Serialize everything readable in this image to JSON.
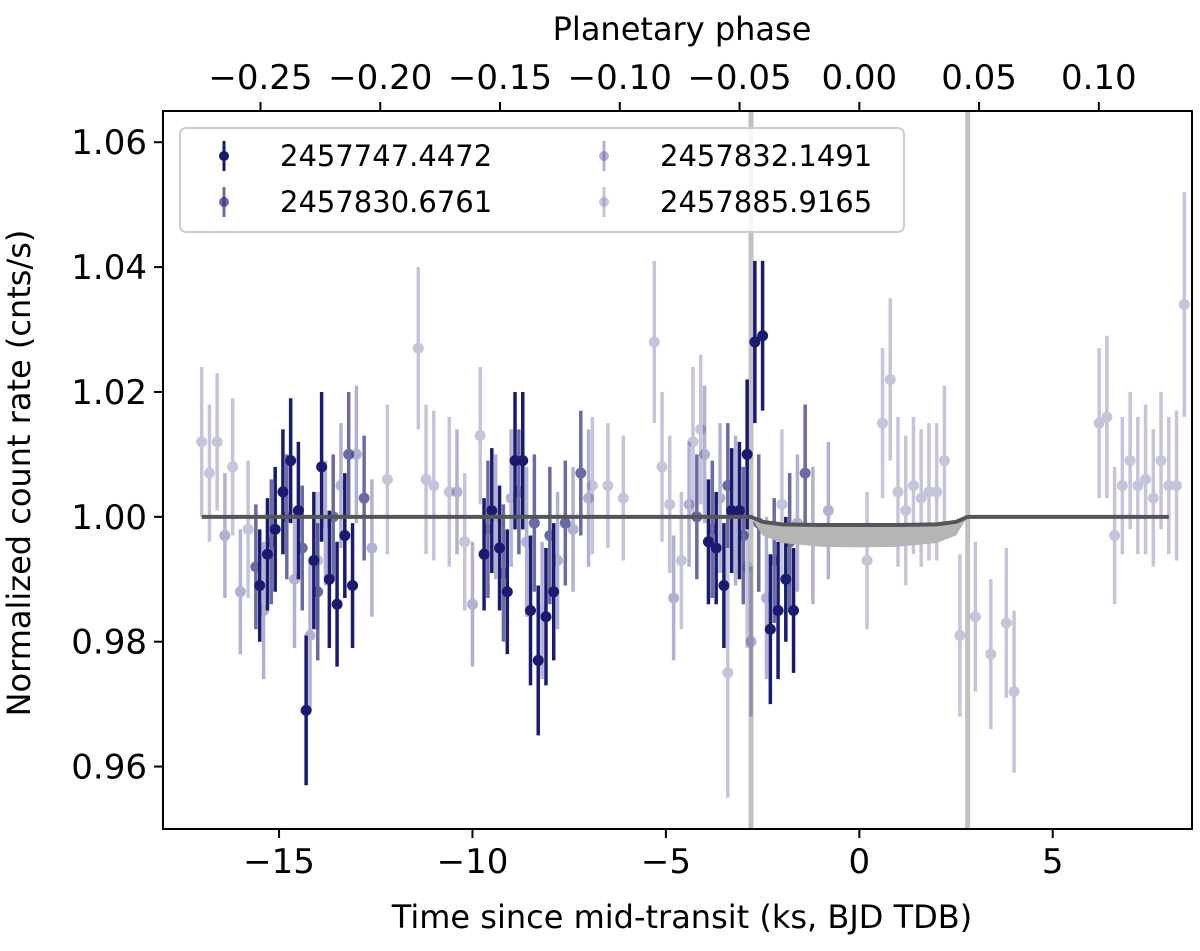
{
  "chart_data": {
    "type": "scatter",
    "xlabel": "Time since mid-transit (ks, BJD TDB)",
    "ylabel": "Normalized count rate (cnts/s)",
    "top_xlabel": "Planetary phase",
    "xlim": [
      -18.0,
      8.6
    ],
    "ylim": [
      0.95,
      1.065
    ],
    "xticks": [
      -15,
      -10,
      -5,
      0,
      5
    ],
    "xtick_labels": [
      "−15",
      "−10",
      "−5",
      "0",
      "5"
    ],
    "yticks": [
      0.96,
      0.98,
      1.0,
      1.02,
      1.04,
      1.06
    ],
    "ytick_labels": [
      "0.96",
      "0.98",
      "1.00",
      "1.02",
      "1.04",
      "1.06"
    ],
    "top_ticks": [
      -0.25,
      -0.2,
      -0.15,
      -0.1,
      -0.05,
      0.0,
      0.05,
      0.1
    ],
    "top_tick_labels": [
      "−0.25",
      "−0.20",
      "−0.15",
      "−0.10",
      "−0.05",
      "0.00",
      "0.05",
      "0.10"
    ],
    "phase_per_ks": 0.01615,
    "transit_contacts": [
      -2.8,
      2.8
    ],
    "legend_position": "upper-left",
    "legend_columns": 2,
    "series": [
      {
        "name": "2457747.4472",
        "color": "#1a1a70",
        "opacity": 1.0,
        "x": [
          -15.5,
          -15.3,
          -15.1,
          -14.9,
          -14.7,
          -14.5,
          -14.3,
          -14.1,
          -13.9,
          -13.7,
          -13.5,
          -13.3,
          -13.1,
          -9.7,
          -9.5,
          -9.3,
          -9.1,
          -8.9,
          -8.7,
          -8.5,
          -8.3,
          -8.1,
          -7.9,
          -3.9,
          -3.7,
          -3.5,
          -3.3,
          -3.1,
          -2.9,
          -2.7,
          -2.5,
          -2.3,
          -2.1,
          -1.9,
          -1.7
        ],
        "y": [
          0.989,
          0.994,
          0.998,
          1.004,
          1.009,
          1.001,
          0.969,
          0.993,
          1.008,
          0.99,
          0.986,
          0.997,
          0.989,
          0.994,
          1.001,
          0.995,
          0.988,
          1.009,
          1.009,
          0.985,
          0.977,
          0.984,
          0.988,
          0.996,
          0.995,
          0.989,
          1.001,
          1.001,
          1.01,
          1.028,
          1.029,
          0.982,
          0.985,
          0.99,
          0.985
        ],
        "yerr": [
          0.009,
          0.009,
          0.01,
          0.01,
          0.01,
          0.011,
          0.012,
          0.011,
          0.012,
          0.011,
          0.01,
          0.01,
          0.01,
          0.009,
          0.01,
          0.01,
          0.01,
          0.011,
          0.011,
          0.012,
          0.012,
          0.011,
          0.011,
          0.01,
          0.009,
          0.01,
          0.01,
          0.011,
          0.012,
          0.013,
          0.012,
          0.012,
          0.011,
          0.01,
          0.01
        ]
      },
      {
        "name": "2457830.6761",
        "color": "#2d2d7e",
        "opacity": 0.7,
        "x": [
          -15.6,
          -15.2,
          -14.8,
          -14.4,
          -14.0,
          -13.6,
          -13.2,
          -12.8,
          -9.6,
          -9.2,
          -8.8,
          -8.4,
          -8.0,
          -7.6,
          -7.2,
          -4.2,
          -3.8,
          -3.4,
          -3.0,
          -2.6,
          -2.2,
          -1.8,
          -1.4
        ],
        "y": [
          0.992,
          0.996,
          1.0,
          0.995,
          0.988,
          1.0,
          1.01,
          1.003,
          0.998,
          0.991,
          1.004,
          0.999,
          0.997,
          0.999,
          1.007,
          1.0,
          0.998,
          1.005,
          0.997,
          0.999,
          0.993,
          0.996,
          1.007
        ],
        "yerr": [
          0.01,
          0.01,
          0.01,
          0.01,
          0.011,
          0.01,
          0.01,
          0.01,
          0.011,
          0.011,
          0.01,
          0.011,
          0.011,
          0.01,
          0.01,
          0.01,
          0.011,
          0.01,
          0.011,
          0.011,
          0.01,
          0.011,
          0.011
        ]
      },
      {
        "name": "2457832.1491",
        "color": "#5555a0",
        "opacity": 0.45,
        "x": [
          -16.4,
          -16.0,
          -15.4,
          -14.6,
          -14.2,
          -13.8,
          -13.4,
          -13.0,
          -12.6,
          -10.4,
          -10.0,
          -9.4,
          -9.0,
          -8.6,
          -8.2,
          -7.8,
          -7.4,
          -7.0,
          -4.8,
          -4.4,
          -4.0,
          -3.6,
          -3.2,
          -2.8,
          -2.4,
          -1.6,
          -1.2,
          -0.8
        ],
        "y": [
          0.997,
          0.988,
          0.985,
          0.99,
          0.981,
          0.999,
          1.005,
          1.01,
          0.995,
          1.004,
          0.986,
          1.0,
          1.003,
          0.996,
          0.985,
          0.993,
          0.998,
          1.003,
          0.987,
          1.002,
          1.01,
          1.003,
          1.001,
          0.98,
          0.987,
          0.999,
          0.997,
          1.001
        ],
        "yerr": [
          0.01,
          0.01,
          0.011,
          0.011,
          0.012,
          0.01,
          0.01,
          0.011,
          0.011,
          0.01,
          0.01,
          0.01,
          0.011,
          0.012,
          0.011,
          0.011,
          0.01,
          0.011,
          0.01,
          0.01,
          0.011,
          0.012,
          0.012,
          0.012,
          0.013,
          0.011,
          0.011,
          0.011
        ]
      },
      {
        "name": "2457885.9165",
        "color": "#8a8ab8",
        "opacity": 0.5,
        "x": [
          -17.0,
          -16.8,
          -16.6,
          -16.2,
          -15.8,
          -14.0,
          -12.2,
          -11.4,
          -11.2,
          -11.0,
          -10.6,
          -10.2,
          -9.8,
          -6.9,
          -6.5,
          -6.1,
          -5.3,
          -5.1,
          -4.9,
          -4.6,
          -4.3,
          -4.1,
          -3.4,
          -2.9,
          -2.0,
          0.2,
          0.6,
          0.8,
          1.0,
          1.2,
          1.4,
          1.6,
          1.8,
          2.0,
          2.2,
          2.6,
          3.0,
          3.4,
          3.8,
          4.0,
          6.2,
          6.4,
          6.6,
          6.8,
          7.0,
          7.2,
          7.4,
          7.6,
          7.8,
          8.0,
          8.2,
          8.4
        ],
        "y": [
          1.012,
          1.007,
          1.012,
          1.008,
          0.998,
          0.993,
          1.006,
          1.027,
          1.006,
          1.005,
          1.004,
          0.996,
          1.013,
          1.005,
          1.005,
          1.003,
          1.028,
          1.008,
          1.002,
          0.993,
          1.012,
          1.014,
          0.975,
          0.992,
          1.002,
          0.993,
          1.015,
          1.022,
          1.004,
          1.001,
          1.005,
          1.003,
          1.004,
          1.004,
          1.009,
          0.981,
          0.984,
          0.978,
          0.983,
          0.972,
          1.015,
          1.016,
          0.997,
          1.005,
          1.009,
          1.005,
          1.006,
          1.003,
          1.009,
          1.005,
          1.005,
          1.034
        ],
        "yerr": [
          0.012,
          0.011,
          0.011,
          0.011,
          0.011,
          0.011,
          0.012,
          0.013,
          0.012,
          0.012,
          0.012,
          0.011,
          0.011,
          0.011,
          0.01,
          0.01,
          0.013,
          0.012,
          0.011,
          0.011,
          0.012,
          0.012,
          0.02,
          0.013,
          0.012,
          0.011,
          0.012,
          0.013,
          0.012,
          0.012,
          0.011,
          0.011,
          0.011,
          0.011,
          0.012,
          0.013,
          0.012,
          0.012,
          0.012,
          0.013,
          0.012,
          0.013,
          0.011,
          0.011,
          0.011,
          0.011,
          0.012,
          0.011,
          0.011,
          0.011,
          0.012,
          0.018
        ]
      }
    ],
    "model": {
      "name": "transit-model",
      "color": "#555555",
      "band_color": "#b5b5b5",
      "x": [
        -17.0,
        -2.8,
        -2.5,
        -2.0,
        -1.0,
        0.0,
        1.0,
        2.0,
        2.5,
        2.8,
        8.0
      ],
      "y": [
        1.0,
        1.0,
        0.9992,
        0.9988,
        0.9987,
        0.9987,
        0.9987,
        0.9988,
        0.9992,
        1.0,
        1.0
      ],
      "band_lower": [
        1.0,
        1.0,
        0.997,
        0.9958,
        0.9952,
        0.9951,
        0.9952,
        0.9958,
        0.997,
        1.0,
        1.0
      ]
    }
  }
}
